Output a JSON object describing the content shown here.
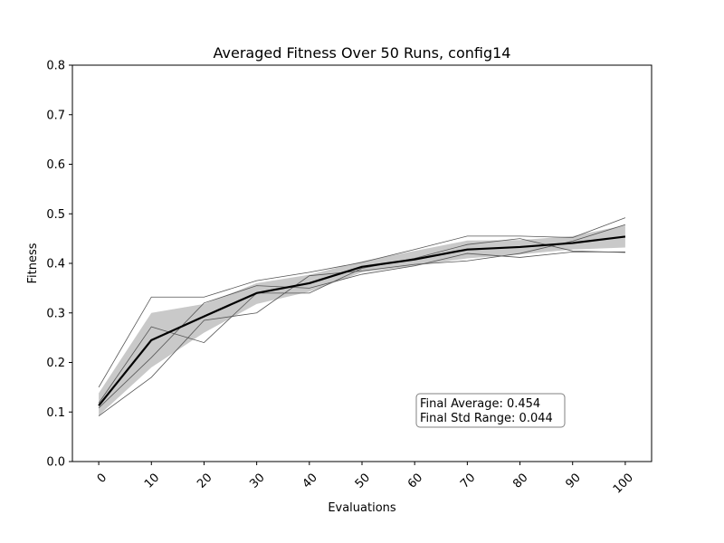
{
  "chart_data": {
    "type": "line",
    "title": "Averaged Fitness Over 50 Runs, config14",
    "xlabel": "Evaluations",
    "ylabel": "Fitness",
    "xlim": [
      -5,
      105
    ],
    "ylim": [
      0.0,
      0.8
    ],
    "x_ticks": [
      "0",
      "10",
      "20",
      "30",
      "40",
      "50",
      "60",
      "70",
      "80",
      "90",
      "100"
    ],
    "y_ticks": [
      "0.0",
      "0.1",
      "0.2",
      "0.3",
      "0.4",
      "0.5",
      "0.6",
      "0.7",
      "0.8"
    ],
    "x": [
      0,
      10,
      20,
      30,
      40,
      50,
      60,
      70,
      80,
      90,
      100
    ],
    "mean": [
      0.113,
      0.245,
      0.293,
      0.34,
      0.36,
      0.393,
      0.408,
      0.428,
      0.433,
      0.441,
      0.454
    ],
    "std_upper": [
      0.138,
      0.3,
      0.318,
      0.36,
      0.377,
      0.404,
      0.425,
      0.446,
      0.447,
      0.455,
      0.477
    ],
    "std_lower": [
      0.093,
      0.19,
      0.26,
      0.318,
      0.343,
      0.382,
      0.395,
      0.41,
      0.418,
      0.428,
      0.432
    ],
    "runs": [
      [
        0.15,
        0.332,
        0.332,
        0.365,
        0.382,
        0.402,
        0.428,
        0.455,
        0.455,
        0.452,
        0.492
      ],
      [
        0.092,
        0.17,
        0.285,
        0.3,
        0.375,
        0.385,
        0.398,
        0.405,
        0.42,
        0.445,
        0.478
      ],
      [
        0.118,
        0.272,
        0.24,
        0.34,
        0.34,
        0.39,
        0.41,
        0.438,
        0.45,
        0.425,
        0.422
      ],
      [
        0.108,
        0.21,
        0.32,
        0.355,
        0.35,
        0.378,
        0.395,
        0.42,
        0.412,
        0.423,
        0.423
      ]
    ],
    "grid": false,
    "colors": {
      "mean": "#000000",
      "band": "#c0c0c0",
      "runs": "#555555"
    }
  },
  "annotation": {
    "line1": "Final Average: 0.454",
    "line2": "Final Std Range: 0.044"
  }
}
